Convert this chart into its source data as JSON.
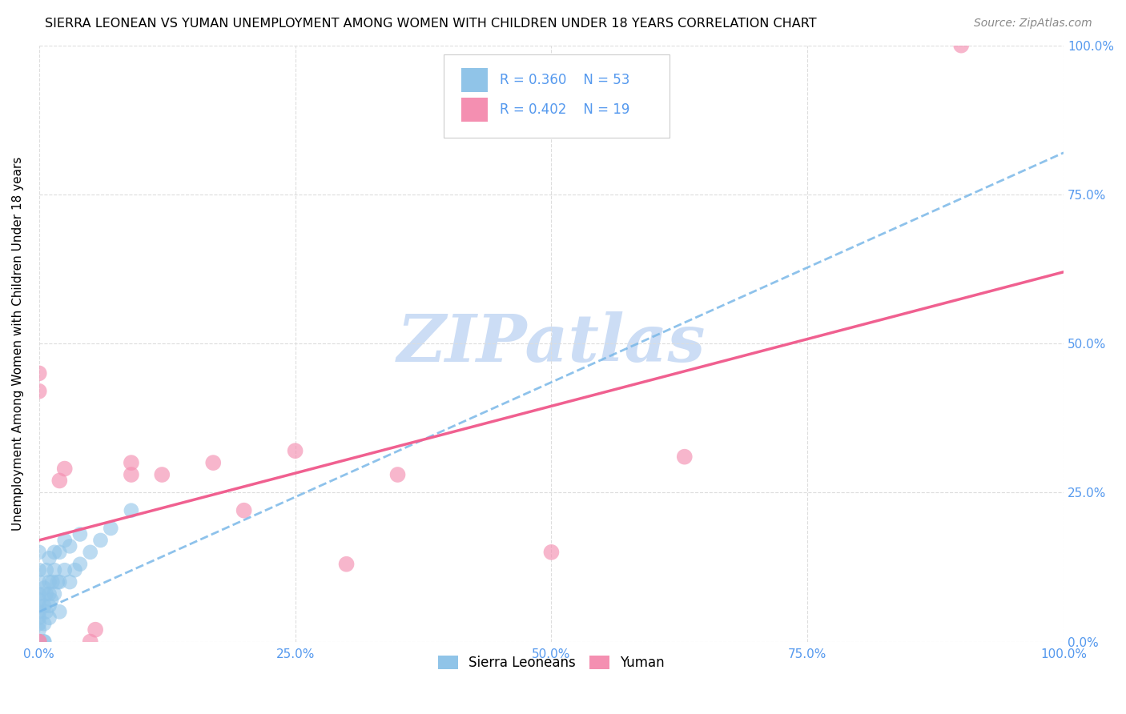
{
  "title": "SIERRA LEONEAN VS YUMAN UNEMPLOYMENT AMONG WOMEN WITH CHILDREN UNDER 18 YEARS CORRELATION CHART",
  "source": "Source: ZipAtlas.com",
  "ylabel": "Unemployment Among Women with Children Under 18 years",
  "xlabel_ticks": [
    "0.0%",
    "25.0%",
    "50.0%",
    "75.0%",
    "100.0%"
  ],
  "ylabel_ticks_right": [
    "100.0%",
    "75.0%",
    "50.0%",
    "25.0%",
    "0.0%"
  ],
  "xlim": [
    0,
    1.0
  ],
  "ylim": [
    0,
    1.0
  ],
  "grid_color": "#dddddd",
  "watermark": "ZIPatlas",
  "sierra_R": "0.360",
  "sierra_N": "53",
  "yuman_R": "0.402",
  "yuman_N": "19",
  "sierra_color": "#90c4e8",
  "yuman_color": "#f48fb1",
  "sierra_line_color": "#7ab8e8",
  "yuman_line_color": "#f06090",
  "title_fontsize": 11.5,
  "source_fontsize": 10,
  "watermark_color": "#ccddf5",
  "tick_color": "#5599ee",
  "sierra_points_x": [
    0.0,
    0.0,
    0.0,
    0.0,
    0.0,
    0.0,
    0.0,
    0.0,
    0.0,
    0.0,
    0.0,
    0.0,
    0.0,
    0.0,
    0.0,
    0.0,
    0.0,
    0.0,
    0.0,
    0.0,
    0.005,
    0.005,
    0.005,
    0.005,
    0.005,
    0.007,
    0.007,
    0.007,
    0.01,
    0.01,
    0.01,
    0.01,
    0.01,
    0.012,
    0.013,
    0.015,
    0.015,
    0.015,
    0.018,
    0.02,
    0.02,
    0.02,
    0.025,
    0.025,
    0.03,
    0.03,
    0.035,
    0.04,
    0.04,
    0.05,
    0.06,
    0.07,
    0.09
  ],
  "sierra_points_y": [
    0.0,
    0.0,
    0.0,
    0.0,
    0.0,
    0.0,
    0.0,
    0.0,
    0.0,
    0.0,
    0.02,
    0.03,
    0.04,
    0.05,
    0.06,
    0.07,
    0.08,
    0.1,
    0.12,
    0.15,
    0.0,
    0.0,
    0.03,
    0.06,
    0.09,
    0.05,
    0.08,
    0.12,
    0.04,
    0.06,
    0.08,
    0.1,
    0.14,
    0.07,
    0.1,
    0.08,
    0.12,
    0.15,
    0.1,
    0.05,
    0.1,
    0.15,
    0.12,
    0.17,
    0.1,
    0.16,
    0.12,
    0.13,
    0.18,
    0.15,
    0.17,
    0.19,
    0.22
  ],
  "yuman_points_x": [
    0.0,
    0.0,
    0.0,
    0.0,
    0.02,
    0.025,
    0.05,
    0.055,
    0.09,
    0.09,
    0.12,
    0.17,
    0.2,
    0.25,
    0.3,
    0.35,
    0.5,
    0.63,
    0.9
  ],
  "yuman_points_y": [
    0.0,
    0.0,
    0.42,
    0.45,
    0.27,
    0.29,
    0.0,
    0.02,
    0.28,
    0.3,
    0.28,
    0.3,
    0.22,
    0.32,
    0.13,
    0.28,
    0.15,
    0.31,
    1.0
  ],
  "sierra_line_x": [
    0.0,
    1.0
  ],
  "sierra_line_y": [
    0.05,
    0.82
  ],
  "yuman_line_x": [
    0.0,
    1.0
  ],
  "yuman_line_y": [
    0.17,
    0.62
  ]
}
